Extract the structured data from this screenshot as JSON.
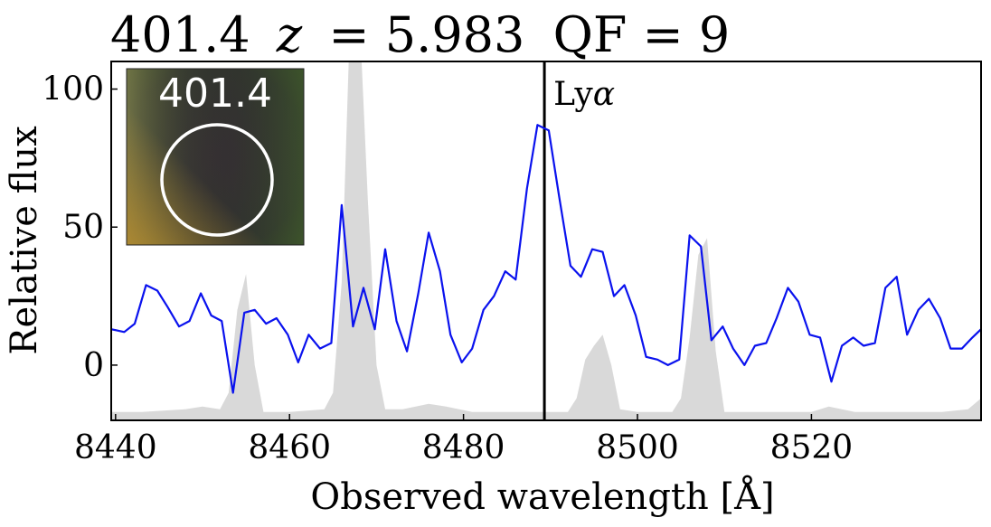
{
  "title": {
    "id": "401.4",
    "z_symbol": "z",
    "z_value": "= 5.983",
    "qf": "QF = 9"
  },
  "colors": {
    "spectrum": "#0a12ee",
    "noise": "#d9d9d9",
    "line_marker": "#000000",
    "frame": "#000000"
  },
  "inset": {
    "label": "401.4",
    "circle_color": "#ffffff"
  },
  "chart_data": {
    "type": "line",
    "xlabel": "Observed wavelength  [Å]",
    "ylabel": "Relative flux",
    "xlim": [
      8439.5,
      8539.5
    ],
    "ylim": [
      -20,
      110
    ],
    "xticks": [
      8440,
      8460,
      8480,
      8500,
      8520
    ],
    "yticks": [
      0,
      50,
      100
    ],
    "grid": false,
    "line_marker": {
      "x": 8489.3,
      "label_prefix": "Ly",
      "label_symbol": "α"
    },
    "series": [
      {
        "kind": "spectrum",
        "x": [
          8439.5,
          8441.0,
          8442.2,
          8443.5,
          8444.8,
          8446.0,
          8447.3,
          8448.5,
          8449.8,
          8451.0,
          8452.2,
          8453.5,
          8454.8,
          8456.0,
          8457.3,
          8458.5,
          8459.8,
          8461.0,
          8462.2,
          8463.5,
          8464.8,
          8466.0,
          8467.3,
          8468.5,
          8469.8,
          8471.0,
          8472.3,
          8473.5,
          8474.8,
          8476.0,
          8477.3,
          8478.5,
          8479.8,
          8481.0,
          8482.3,
          8483.5,
          8484.8,
          8486.0,
          8487.3,
          8488.5,
          8489.8,
          8491.0,
          8492.3,
          8493.5,
          8494.8,
          8496.0,
          8497.3,
          8498.5,
          8499.8,
          8501.0,
          8502.3,
          8503.5,
          8504.8,
          8506.0,
          8507.3,
          8508.5,
          8509.8,
          8511.0,
          8512.3,
          8513.5,
          8514.8,
          8516.0,
          8517.3,
          8518.5,
          8519.8,
          8521.0,
          8522.3,
          8523.5,
          8524.8,
          8526.0,
          8527.3,
          8528.5,
          8529.8,
          8531.0,
          8532.3,
          8533.5,
          8534.8,
          8536.0,
          8537.3,
          8538.5,
          8539.5
        ],
        "y": [
          13,
          12,
          15,
          29,
          27,
          21,
          14,
          16,
          26,
          18,
          16,
          -10,
          19,
          20,
          15,
          17,
          11,
          1,
          11,
          6,
          8,
          58,
          14,
          28,
          13,
          42,
          16,
          5,
          26,
          48,
          34,
          11,
          1,
          6,
          20,
          25,
          34,
          31,
          64,
          87,
          85,
          61,
          36,
          32,
          42,
          41,
          25,
          29,
          18,
          3,
          2,
          0,
          2,
          47,
          43,
          9,
          14,
          6,
          0,
          7,
          8,
          17,
          28,
          23,
          11,
          10,
          -6,
          7,
          10,
          7,
          8,
          28,
          32,
          11,
          20,
          24,
          17,
          6,
          6,
          10,
          13
        ]
      },
      {
        "kind": "noise",
        "x": [
          8439.5,
          8443,
          8448,
          8450,
          8452,
          8453,
          8454,
          8455,
          8456,
          8457,
          8460,
          8464,
          8465,
          8466,
          8467,
          8468,
          8469,
          8470,
          8471,
          8473,
          8476,
          8478,
          8481,
          8484,
          8488,
          8492,
          8493,
          8494,
          8495,
          8496,
          8497,
          8498,
          8500,
          8504,
          8505,
          8506,
          8507,
          8508,
          8509,
          8510,
          8514,
          8520,
          8522,
          8525,
          8530,
          8535,
          8538,
          8539.5
        ],
        "y": [
          -17,
          -17,
          -16,
          -15,
          -16,
          -10,
          20,
          33,
          0,
          -17,
          -17,
          -16,
          -10,
          30,
          130,
          130,
          60,
          0,
          -16,
          -16,
          -14,
          -15,
          -17,
          -17,
          -17,
          -17,
          -12,
          2,
          7,
          11,
          0,
          -16,
          -17,
          -17,
          -12,
          10,
          40,
          46,
          5,
          -17,
          -17,
          -17,
          -15,
          -17,
          -17,
          -17,
          -16,
          -12
        ]
      }
    ]
  }
}
